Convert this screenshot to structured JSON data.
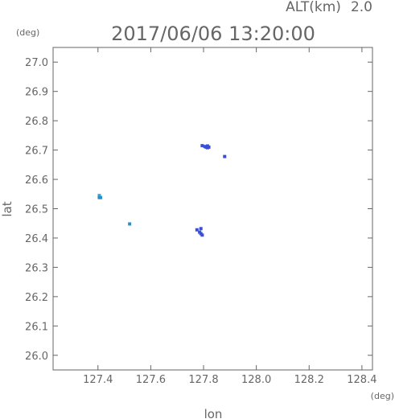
{
  "header": {
    "altitude_label": "ALT(km)",
    "altitude_value": "2.0",
    "timestamp": "2017/06/06 13:20:00"
  },
  "chart_data": {
    "type": "scatter",
    "title": "2017/06/06 13:20:00",
    "xlabel": "lon",
    "ylabel": "lat",
    "x_unit": "(deg)",
    "y_unit": "(deg)",
    "xlim": [
      127.23,
      128.44
    ],
    "ylim": [
      25.95,
      27.05
    ],
    "x_ticks": [
      "127.4",
      "127.6",
      "127.8",
      "128.0",
      "128.2",
      "128.4"
    ],
    "y_ticks": [
      "26.0",
      "26.1",
      "26.2",
      "26.3",
      "26.4",
      "26.5",
      "26.6",
      "26.7",
      "26.8",
      "26.9",
      "27.0"
    ],
    "grid": false,
    "colors": {
      "axis": "#666666",
      "echo_blue": "#3a4fd8",
      "echo_cyan": "#3aa8e0",
      "echo_teal": "#2a8fc8"
    },
    "points": [
      {
        "x": 127.405,
        "y": 26.545,
        "color": "#3aa8e0"
      },
      {
        "x": 127.41,
        "y": 26.538,
        "color": "#2a8fc8"
      },
      {
        "x": 127.405,
        "y": 26.538,
        "color": "#2a8fc8"
      },
      {
        "x": 127.52,
        "y": 26.448,
        "color": "#2a8fc8"
      },
      {
        "x": 127.775,
        "y": 26.428,
        "color": "#3a4fd8"
      },
      {
        "x": 127.785,
        "y": 26.42,
        "color": "#3a4fd8"
      },
      {
        "x": 127.79,
        "y": 26.415,
        "color": "#3a4fd8"
      },
      {
        "x": 127.795,
        "y": 26.41,
        "color": "#3a4fd8"
      },
      {
        "x": 127.79,
        "y": 26.432,
        "color": "#3a4fd8"
      },
      {
        "x": 127.795,
        "y": 26.715,
        "color": "#3a4fd8"
      },
      {
        "x": 127.805,
        "y": 26.712,
        "color": "#3a4fd8"
      },
      {
        "x": 127.81,
        "y": 26.71,
        "color": "#3a4fd8"
      },
      {
        "x": 127.815,
        "y": 26.708,
        "color": "#3a4fd8"
      },
      {
        "x": 127.82,
        "y": 26.71,
        "color": "#3a4fd8"
      },
      {
        "x": 127.815,
        "y": 26.714,
        "color": "#3a4fd8"
      },
      {
        "x": 127.88,
        "y": 26.678,
        "color": "#3a4fd8"
      }
    ]
  }
}
